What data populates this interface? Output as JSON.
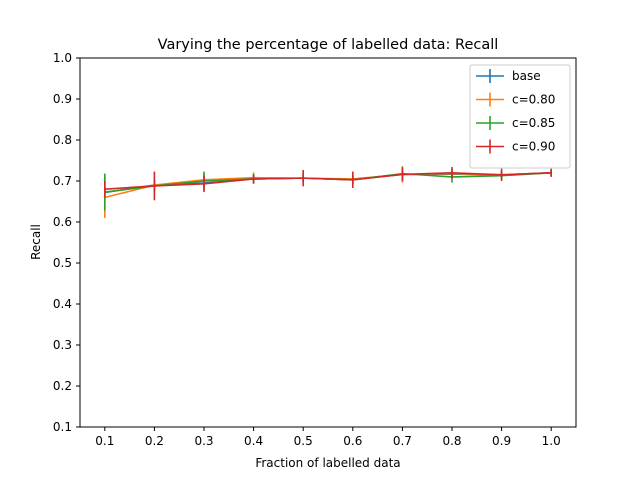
{
  "chart_data": {
    "type": "line",
    "title": "Varying the percentage of labelled data: Recall",
    "xlabel": "Fraction of labelled data",
    "ylabel": "Recall",
    "xlim": [
      0.05,
      1.05
    ],
    "ylim": [
      0.1,
      1.0
    ],
    "xticks": [
      "0.1",
      "0.2",
      "0.3",
      "0.4",
      "0.5",
      "0.6",
      "0.7",
      "0.8",
      "0.9",
      "1.0"
    ],
    "yticks": [
      "0.1",
      "0.2",
      "0.3",
      "0.4",
      "0.5",
      "0.6",
      "0.7",
      "0.8",
      "0.9",
      "1.0"
    ],
    "grid": false,
    "legend_position": "top-right",
    "x": [
      0.1,
      0.2,
      0.3,
      0.4,
      0.5,
      0.6,
      0.7,
      0.8,
      0.9,
      1.0
    ],
    "series": [
      {
        "name": "base",
        "color": "#1f77b4",
        "values": [
          0.672,
          0.69,
          0.695,
          0.705,
          0.707,
          0.703,
          0.716,
          0.717,
          0.715,
          0.72
        ],
        "errors": [
          0.015,
          0.012,
          0.01,
          0.008,
          0.01,
          0.01,
          0.01,
          0.009,
          0.009,
          0.008
        ]
      },
      {
        "name": "c=0.80",
        "color": "#ff7f0e",
        "values": [
          0.66,
          0.69,
          0.703,
          0.708,
          0.707,
          0.705,
          0.716,
          0.718,
          0.715,
          0.72
        ],
        "errors": [
          0.05,
          0.015,
          0.015,
          0.013,
          0.012,
          0.01,
          0.02,
          0.012,
          0.01,
          0.008
        ]
      },
      {
        "name": "c=0.85",
        "color": "#2ca02c",
        "values": [
          0.673,
          0.688,
          0.7,
          0.705,
          0.707,
          0.703,
          0.718,
          0.71,
          0.713,
          0.72
        ],
        "errors": [
          0.045,
          0.015,
          0.023,
          0.012,
          0.01,
          0.01,
          0.017,
          0.014,
          0.01,
          0.008
        ]
      },
      {
        "name": "c=0.90",
        "color": "#d62728",
        "values": [
          0.68,
          0.688,
          0.693,
          0.705,
          0.707,
          0.703,
          0.716,
          0.72,
          0.715,
          0.72
        ],
        "errors": [
          0.02,
          0.035,
          0.02,
          0.01,
          0.02,
          0.02,
          0.016,
          0.014,
          0.015,
          0.01
        ]
      }
    ]
  }
}
